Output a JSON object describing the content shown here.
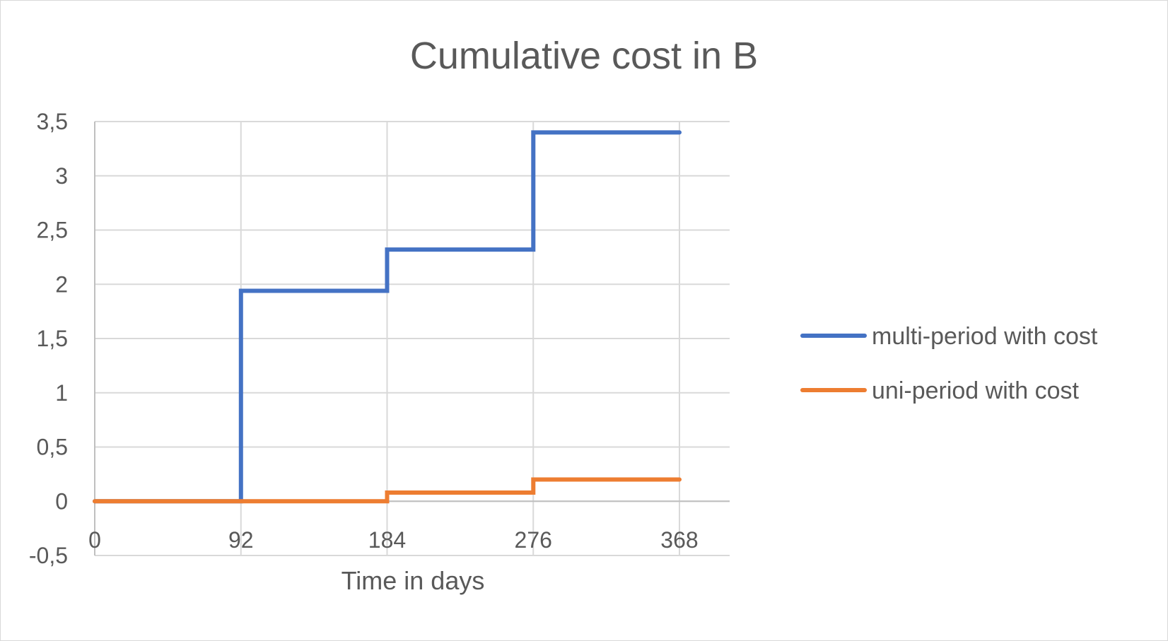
{
  "chart_data": {
    "type": "line",
    "step": true,
    "title": "Cumulative cost in B",
    "xlabel": "Time in days",
    "ylabel": "",
    "xlim": [
      0,
      368
    ],
    "ylim": [
      -0.5,
      3.5
    ],
    "x_ticks": [
      0,
      92,
      184,
      276,
      368
    ],
    "x_tick_labels": [
      "0",
      "92",
      "184",
      "276",
      "368"
    ],
    "y_ticks": [
      -0.5,
      0,
      0.5,
      1,
      1.5,
      2,
      2.5,
      3,
      3.5
    ],
    "y_tick_labels": [
      "-0,5",
      "0",
      "0,5",
      "1",
      "1,5",
      "2",
      "2,5",
      "3",
      "3,5"
    ],
    "grid": true,
    "legend_position": "right",
    "series": [
      {
        "name": "multi-period with cost",
        "color": "#4472c4",
        "x": [
          0,
          92,
          92,
          184,
          184,
          276,
          276,
          368
        ],
        "values": [
          0,
          0,
          1.94,
          1.94,
          2.32,
          2.32,
          3.4,
          3.4
        ]
      },
      {
        "name": "uni-period with cost",
        "color": "#ed7d31",
        "x": [
          0,
          184,
          184,
          276,
          276,
          368
        ],
        "values": [
          0,
          0,
          0.08,
          0.08,
          0.2,
          0.2
        ]
      }
    ]
  }
}
